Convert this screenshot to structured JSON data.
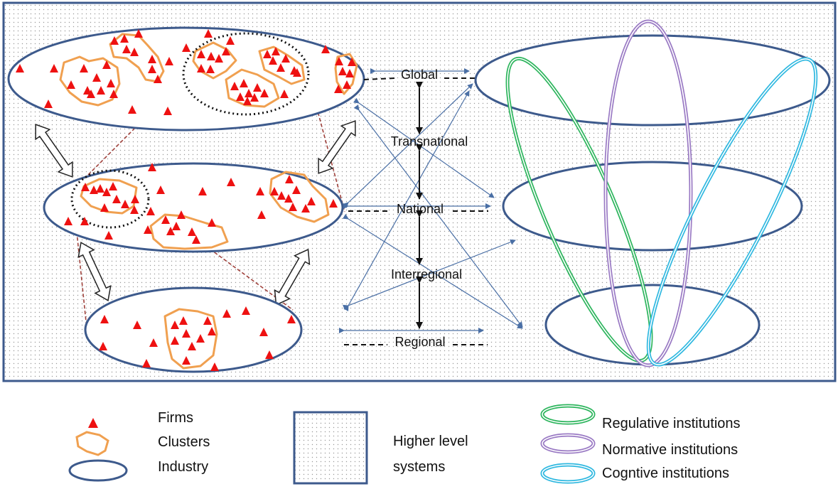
{
  "levels": {
    "global": "Global",
    "transnational": "Transnational",
    "national": "National",
    "interregional": "Interregional",
    "regional": "Regional"
  },
  "legend": {
    "firms": "Firms",
    "clusters": "Clusters",
    "industry": "Industry",
    "higher_level_systems": [
      "Higher level",
      "systems"
    ],
    "regulative": "Regulative institutions",
    "normative": "Normative institutions",
    "cognitive": "Cogntive institutions"
  },
  "colors": {
    "firm": "#ee1111",
    "cluster": "#f0a050",
    "industry": "#3d5a8c",
    "background_dots": "#9a9a9a",
    "arrows": "#4a6fa5",
    "regulative": "#2db55d",
    "normative": "#9a7ac4",
    "cognitive": "#2fb8e0",
    "zoom_lines": "#a0423c"
  }
}
